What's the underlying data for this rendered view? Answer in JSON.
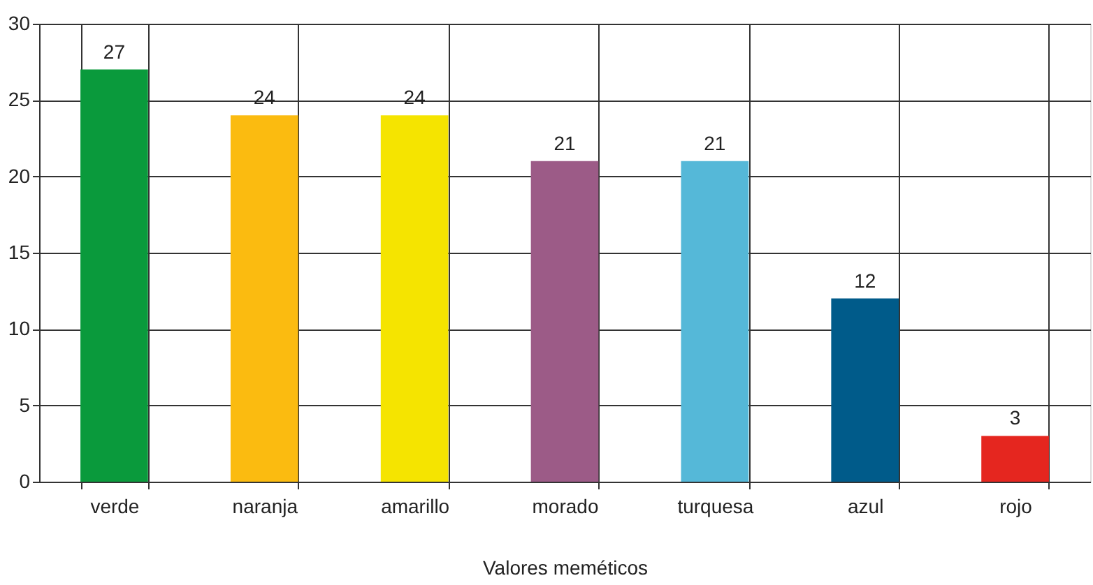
{
  "chart_data": {
    "type": "bar",
    "xlabel": "Valores meméticos",
    "categories": [
      "verde",
      "naranja",
      "amarillo",
      "morado",
      "turquesa",
      "azul",
      "rojo"
    ],
    "values": [
      27,
      24,
      24,
      21,
      21,
      12,
      3
    ],
    "colors": [
      "#0a9a3c",
      "#fbbb10",
      "#f5e400",
      "#9c5b87",
      "#55b8d8",
      "#005b8a",
      "#e5261f"
    ],
    "ylim": [
      0,
      30
    ],
    "yticks": [
      0,
      5,
      10,
      15,
      20,
      25,
      30
    ],
    "grid": true,
    "data_labels": true
  }
}
